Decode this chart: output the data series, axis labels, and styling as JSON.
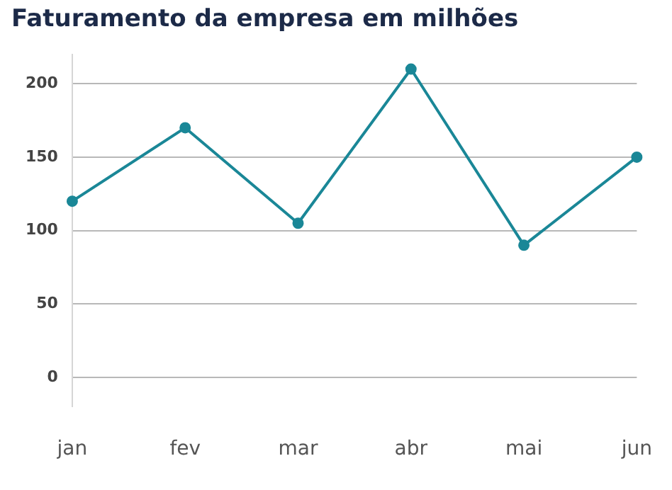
{
  "chart_data": {
    "type": "line",
    "title": "Faturamento da empresa em milhões",
    "categories": [
      "jan",
      "fev",
      "mar",
      "abr",
      "mai",
      "jun"
    ],
    "series": [
      {
        "color": "#1a8797",
        "values": [
          120,
          170,
          105,
          210,
          90,
          150
        ]
      }
    ],
    "ylim": [
      -20,
      220
    ],
    "yticks": [
      0,
      50,
      100,
      150,
      200
    ],
    "grid": "y",
    "marker": "circle",
    "line_style": "solid",
    "legend": false
  }
}
